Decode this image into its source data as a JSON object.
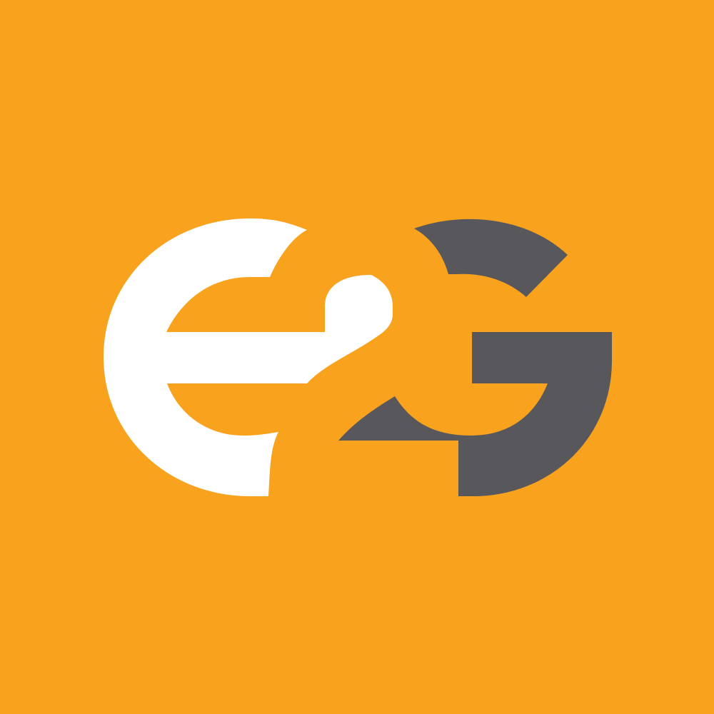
{
  "logo": {
    "text": "e2G",
    "colors": {
      "background": "#F8A21E",
      "e_letter": "#FFFFFF",
      "two_digit": "#F8A21E",
      "g_letter": "#58585C"
    }
  }
}
